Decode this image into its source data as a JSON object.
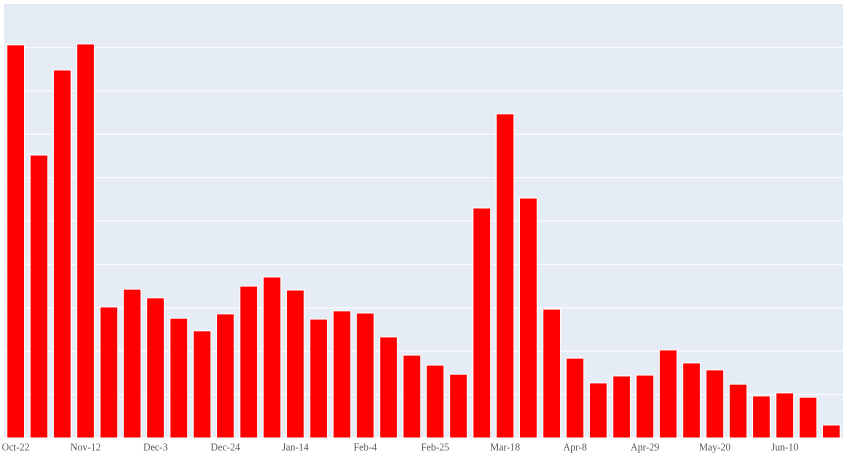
{
  "chart_data": {
    "type": "bar",
    "categories": [
      "Oct-22",
      null,
      null,
      "Nov-12",
      null,
      null,
      "Dec-3",
      null,
      null,
      "Dec-24",
      null,
      null,
      "Jan-14",
      null,
      null,
      "Feb-4",
      null,
      null,
      "Feb-25",
      null,
      null,
      "Mar-18",
      null,
      null,
      "Apr-8",
      null,
      null,
      "Apr-29",
      null,
      null,
      "May-20",
      null,
      null,
      "Jun-10",
      null,
      null
    ],
    "values": [
      9.06,
      6.52,
      8.48,
      9.08,
      3.02,
      3.43,
      3.23,
      2.76,
      2.47,
      2.86,
      3.5,
      3.71,
      3.41,
      2.74,
      2.93,
      2.88,
      2.33,
      1.91,
      1.68,
      1.47,
      5.3,
      7.47,
      5.53,
      2.97,
      1.84,
      1.27,
      1.43,
      1.45,
      2.03,
      1.73,
      1.57,
      1.24,
      0.97,
      1.04,
      0.94,
      0.3
    ],
    "color": "#ff0000",
    "ylim": [
      0,
      10
    ],
    "yticks": [
      0,
      1,
      2,
      3,
      4,
      5,
      6,
      7,
      8,
      9
    ],
    "grid": true
  }
}
